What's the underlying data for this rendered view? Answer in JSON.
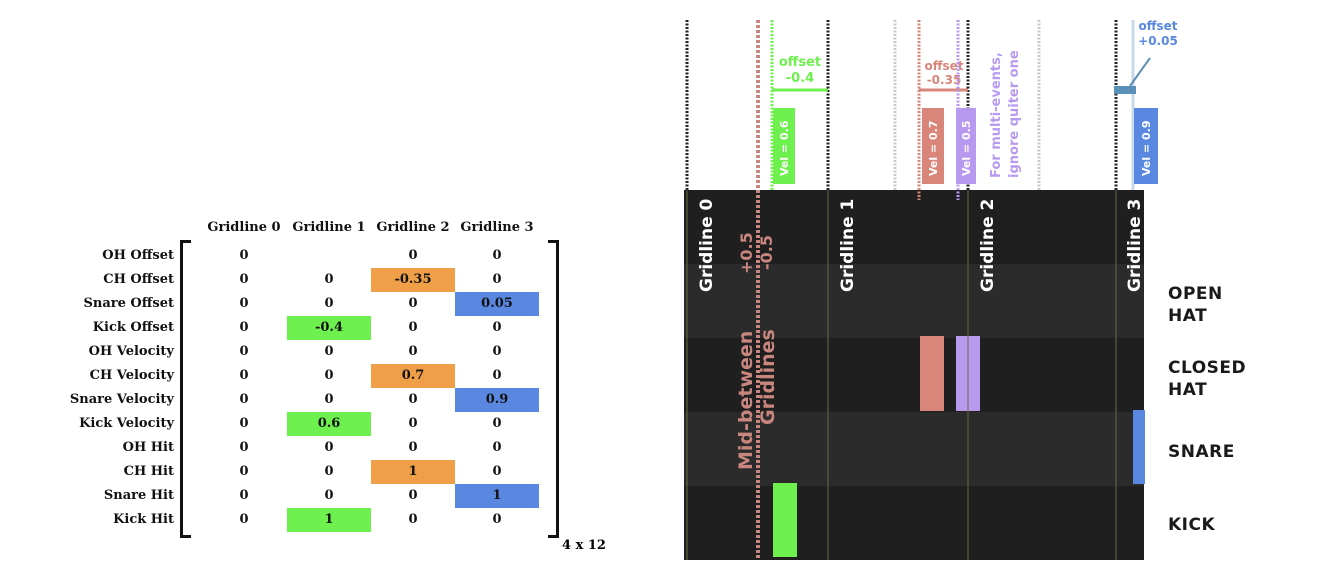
{
  "matrix": {
    "columns": [
      "Gridline 0",
      "Gridline 1",
      "Gridline 2",
      "Gridline 3"
    ],
    "rows": [
      {
        "label": "OH Offset",
        "values": [
          "0",
          "",
          "0",
          "0"
        ],
        "highlight": [
          null,
          null,
          null,
          null
        ]
      },
      {
        "label": "CH Offset",
        "values": [
          "0",
          "0",
          "-0.35",
          "0"
        ],
        "highlight": [
          null,
          null,
          "orange",
          null
        ]
      },
      {
        "label": "Snare Offset",
        "values": [
          "0",
          "0",
          "0",
          "0.05"
        ],
        "highlight": [
          null,
          null,
          null,
          "blue"
        ]
      },
      {
        "label": "Kick Offset",
        "values": [
          "0",
          "-0.4",
          "0",
          "0"
        ],
        "highlight": [
          null,
          "green",
          null,
          null
        ]
      },
      {
        "label": "OH Velocity",
        "values": [
          "0",
          "0",
          "0",
          "0"
        ],
        "highlight": [
          null,
          null,
          null,
          null
        ]
      },
      {
        "label": "CH Velocity",
        "values": [
          "0",
          "0",
          "0.7",
          "0"
        ],
        "highlight": [
          null,
          null,
          "orange",
          null
        ]
      },
      {
        "label": "Snare Velocity",
        "values": [
          "0",
          "0",
          "0",
          "0.9"
        ],
        "highlight": [
          null,
          null,
          null,
          "blue"
        ]
      },
      {
        "label": "Kick Velocity",
        "values": [
          "0",
          "0.6",
          "0",
          "0"
        ],
        "highlight": [
          null,
          "green",
          null,
          null
        ]
      },
      {
        "label": "OH Hit",
        "values": [
          "0",
          "0",
          "0",
          "0"
        ],
        "highlight": [
          null,
          null,
          null,
          null
        ]
      },
      {
        "label": "CH Hit",
        "values": [
          "0",
          "0",
          "1",
          "0"
        ],
        "highlight": [
          null,
          null,
          "orange",
          null
        ]
      },
      {
        "label": "Snare Hit",
        "values": [
          "0",
          "0",
          "0",
          "1"
        ],
        "highlight": [
          null,
          null,
          null,
          "blue"
        ]
      },
      {
        "label": "Kick Hit",
        "values": [
          "0",
          "1",
          "0",
          "0"
        ],
        "highlight": [
          null,
          "green",
          null,
          null
        ]
      }
    ],
    "dimensions": "4 x 12"
  },
  "colors": {
    "green": "#6ef04f",
    "orange": "#ee9f48",
    "blue": "#5a88e0",
    "salmon": "#d9857a",
    "lavender": "#b79af0",
    "mid_line": "#c9867e",
    "dark_lane": "#1f1f1f",
    "light_lane": "#2b2b2b"
  },
  "diagram": {
    "gridlines": [
      "Gridline 0",
      "Gridline 1",
      "Gridline 2",
      "Gridline 3"
    ],
    "mid_label_line1": "Mid-between",
    "mid_label_line2": "Gridlines",
    "plus_half": "+0.5",
    "minus_half": "-0.5",
    "kick_offset": {
      "line1": "offset",
      "line2": "-0.4"
    },
    "ch_offset": {
      "line1": "offset",
      "line2": "-0.35"
    },
    "snare_offset": {
      "line1": "offset",
      "line2": "+0.05"
    },
    "vel_labels": {
      "kick": "Vel = 0.6",
      "ch": "Vel = 0.7",
      "ch_quiet": "Vel = 0.5",
      "snare": "Vel = 0.9"
    },
    "multi_note_line1": "For multi-events,",
    "multi_note_line2": "ignore quiter one",
    "lanes": [
      {
        "line1": "OPEN",
        "line2": "HAT"
      },
      {
        "line1": "CLOSED",
        "line2": "HAT"
      },
      {
        "line1": "SNARE",
        "line2": ""
      },
      {
        "line1": "KICK",
        "line2": ""
      }
    ]
  }
}
